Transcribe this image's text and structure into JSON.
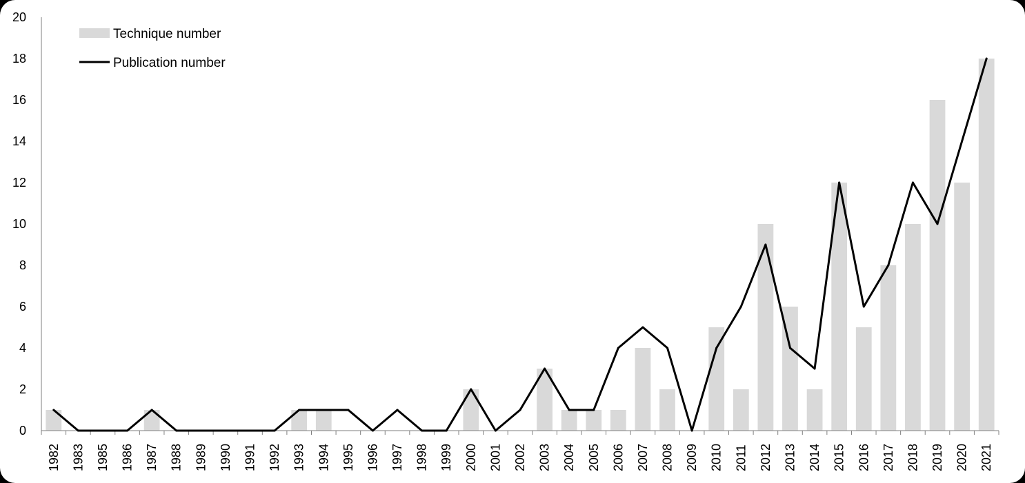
{
  "chart_data": {
    "type": "bar",
    "categories": [
      "1982",
      "1983",
      "1985",
      "1986",
      "1987",
      "1988",
      "1989",
      "1990",
      "1991",
      "1992",
      "1993",
      "1994",
      "1995",
      "1996",
      "1997",
      "1998",
      "1999",
      "2000",
      "2001",
      "2002",
      "2003",
      "2004",
      "2005",
      "2006",
      "2007",
      "2008",
      "2009",
      "2010",
      "2011",
      "2012",
      "2013",
      "2014",
      "2015",
      "2016",
      "2017",
      "2018",
      "2019",
      "2020",
      "2021"
    ],
    "series": [
      {
        "name": "Technique number",
        "type": "bar",
        "color": "#d9d9d9",
        "values": [
          1,
          0,
          0,
          0,
          1,
          0,
          0,
          0,
          0,
          0,
          1,
          1,
          0,
          0,
          0,
          0,
          0,
          2,
          0,
          0,
          3,
          1,
          1,
          1,
          4,
          2,
          0,
          5,
          2,
          10,
          6,
          2,
          12,
          5,
          8,
          10,
          16,
          12,
          18
        ]
      },
      {
        "name": "Publication number",
        "type": "line",
        "color": "#000000",
        "values": [
          1,
          0,
          0,
          0,
          1,
          0,
          0,
          0,
          0,
          0,
          1,
          1,
          1,
          0,
          1,
          0,
          0,
          2,
          0,
          1,
          3,
          1,
          1,
          4,
          5,
          4,
          0,
          4,
          6,
          9,
          4,
          3,
          12,
          6,
          8,
          12,
          10,
          14,
          18
        ]
      }
    ],
    "yticks": [
      0,
      2,
      4,
      6,
      8,
      10,
      12,
      14,
      16,
      18,
      20
    ],
    "ylim": [
      0,
      20
    ],
    "grid": false,
    "legend": "top-left"
  }
}
